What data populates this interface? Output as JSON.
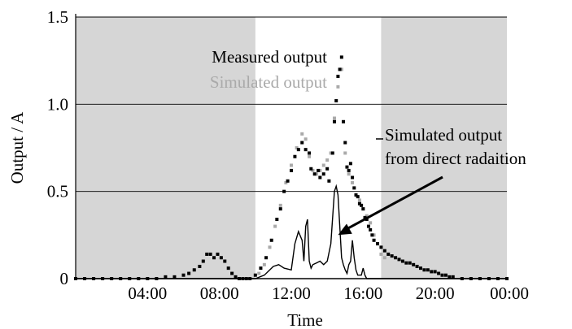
{
  "chart_data": {
    "type": "scatter",
    "title": "",
    "xlabel": "Time",
    "ylabel": "Output / A",
    "xlim": [
      0,
      24
    ],
    "ylim": [
      0,
      1.5
    ],
    "x_unit": "hour of day",
    "x_ticks": [
      {
        "value": 4,
        "label": "04:00"
      },
      {
        "value": 8,
        "label": "08:00"
      },
      {
        "value": 12,
        "label": "12:00"
      },
      {
        "value": 16,
        "label": "16:00"
      },
      {
        "value": 20,
        "label": "20:00"
      },
      {
        "value": 24,
        "label": "00:00"
      }
    ],
    "y_ticks": [
      {
        "value": 0,
        "label": "0"
      },
      {
        "value": 0.5,
        "label": "0.5"
      },
      {
        "value": 1.0,
        "label": "1.0"
      },
      {
        "value": 1.5,
        "label": "1.5"
      }
    ],
    "grid": "horizontal",
    "shaded_regions": [
      {
        "from": 0,
        "to": 10,
        "color": "#d6d6d6"
      },
      {
        "from": 17,
        "to": 24,
        "color": "#d6d6d6"
      }
    ],
    "legend_items": [
      {
        "label": "Measured output",
        "color": "#000000"
      },
      {
        "label": "Simulated output",
        "color": "#aaaaaa"
      }
    ],
    "annotation": {
      "lines": [
        "Simulated output",
        "from direct radaition"
      ],
      "points_to": {
        "x": 14.6,
        "y": 0.25
      }
    },
    "series": [
      {
        "name": "Measured output",
        "style": "points",
        "color": "#000000",
        "x": [
          0.0,
          0.5,
          1.0,
          1.5,
          2.0,
          2.5,
          3.0,
          3.5,
          4.0,
          4.5,
          5.0,
          5.5,
          6.0,
          6.3,
          6.6,
          6.9,
          7.1,
          7.3,
          7.5,
          7.7,
          7.9,
          8.1,
          8.3,
          8.5,
          8.7,
          8.9,
          9.1,
          9.3,
          9.5,
          9.7,
          10.0,
          10.3,
          10.6,
          10.9,
          11.2,
          11.4,
          11.6,
          11.8,
          12.0,
          12.2,
          12.4,
          12.6,
          12.8,
          13.0,
          13.1,
          13.3,
          13.5,
          13.6,
          13.8,
          14.0,
          14.1,
          14.3,
          14.4,
          14.5,
          14.6,
          14.7,
          14.8,
          14.9,
          15.0,
          15.1,
          15.2,
          15.3,
          15.4,
          15.5,
          15.6,
          15.7,
          15.8,
          15.9,
          16.0,
          16.1,
          16.2,
          16.3,
          16.4,
          16.5,
          16.6,
          16.8,
          17.0,
          17.2,
          17.4,
          17.6,
          17.8,
          18.0,
          18.2,
          18.4,
          18.6,
          18.8,
          19.0,
          19.2,
          19.4,
          19.6,
          19.8,
          20.0,
          20.2,
          20.4,
          20.6,
          20.8,
          21.0,
          21.5,
          22.0,
          22.5,
          23.0,
          23.5,
          24.0
        ],
        "y": [
          0.0,
          0.0,
          0.0,
          0.0,
          0.0,
          0.0,
          0.0,
          0.0,
          0.0,
          0.0,
          0.01,
          0.01,
          0.02,
          0.03,
          0.05,
          0.07,
          0.1,
          0.14,
          0.14,
          0.12,
          0.14,
          0.12,
          0.1,
          0.06,
          0.03,
          0.01,
          0.0,
          0.0,
          0.0,
          0.0,
          0.02,
          0.06,
          0.12,
          0.22,
          0.34,
          0.4,
          0.5,
          0.56,
          0.62,
          0.7,
          0.74,
          0.78,
          0.74,
          0.72,
          0.63,
          0.6,
          0.62,
          0.58,
          0.6,
          0.63,
          0.56,
          0.72,
          0.9,
          1.02,
          1.16,
          1.2,
          1.27,
          0.9,
          0.78,
          0.64,
          0.62,
          0.66,
          0.58,
          0.52,
          0.48,
          0.47,
          0.43,
          0.42,
          0.4,
          0.35,
          0.34,
          0.3,
          0.28,
          0.25,
          0.22,
          0.2,
          0.18,
          0.16,
          0.14,
          0.13,
          0.12,
          0.11,
          0.1,
          0.09,
          0.09,
          0.08,
          0.07,
          0.06,
          0.05,
          0.05,
          0.04,
          0.04,
          0.03,
          0.02,
          0.02,
          0.01,
          0.01,
          0.0,
          0.0,
          0.0,
          0.0,
          0.0,
          0.0
        ]
      },
      {
        "name": "Simulated output",
        "style": "points",
        "color": "#aaaaaa",
        "x": [
          10.2,
          10.5,
          10.8,
          11.1,
          11.4,
          11.7,
          12.0,
          12.3,
          12.6,
          12.8,
          13.0,
          13.2,
          13.4,
          13.6,
          13.8,
          14.0,
          14.2,
          14.4,
          14.6,
          14.8,
          15.0,
          15.2,
          15.4,
          15.6,
          15.8,
          16.0,
          16.2,
          16.4,
          16.6,
          16.8,
          17.0,
          17.2
        ],
        "y": [
          0.03,
          0.08,
          0.18,
          0.3,
          0.42,
          0.55,
          0.65,
          0.75,
          0.83,
          0.8,
          0.7,
          0.62,
          0.6,
          0.62,
          0.65,
          0.68,
          0.72,
          0.92,
          1.1,
          1.2,
          0.72,
          0.6,
          0.55,
          0.48,
          0.45,
          0.4,
          0.36,
          0.32,
          0.25,
          0.2,
          0.14,
          0.12
        ]
      },
      {
        "name": "Simulated output from direct radaition",
        "style": "line",
        "color": "#000000",
        "x": [
          0,
          10.0,
          10.5,
          11.0,
          11.3,
          11.6,
          12.0,
          12.2,
          12.4,
          12.6,
          12.7,
          12.8,
          12.9,
          13.0,
          13.1,
          13.2,
          13.4,
          13.6,
          13.8,
          14.0,
          14.2,
          14.4,
          14.5,
          14.6,
          14.7,
          14.8,
          14.9,
          15.0,
          15.1,
          15.2,
          15.3,
          15.4,
          15.5,
          15.6,
          15.7,
          15.9,
          16.0,
          16.1,
          16.2,
          16.4,
          16.6,
          17.0,
          24
        ],
        "y": [
          0,
          0.0,
          0.02,
          0.07,
          0.08,
          0.06,
          0.05,
          0.2,
          0.27,
          0.22,
          0.1,
          0.3,
          0.34,
          0.1,
          0.06,
          0.08,
          0.09,
          0.1,
          0.08,
          0.1,
          0.2,
          0.5,
          0.53,
          0.48,
          0.3,
          0.12,
          0.08,
          0.05,
          0.03,
          0.08,
          0.1,
          0.22,
          0.12,
          0.05,
          0.02,
          0.02,
          0.06,
          0.02,
          0.0,
          0.0,
          0.0,
          0.0,
          0
        ]
      }
    ]
  }
}
